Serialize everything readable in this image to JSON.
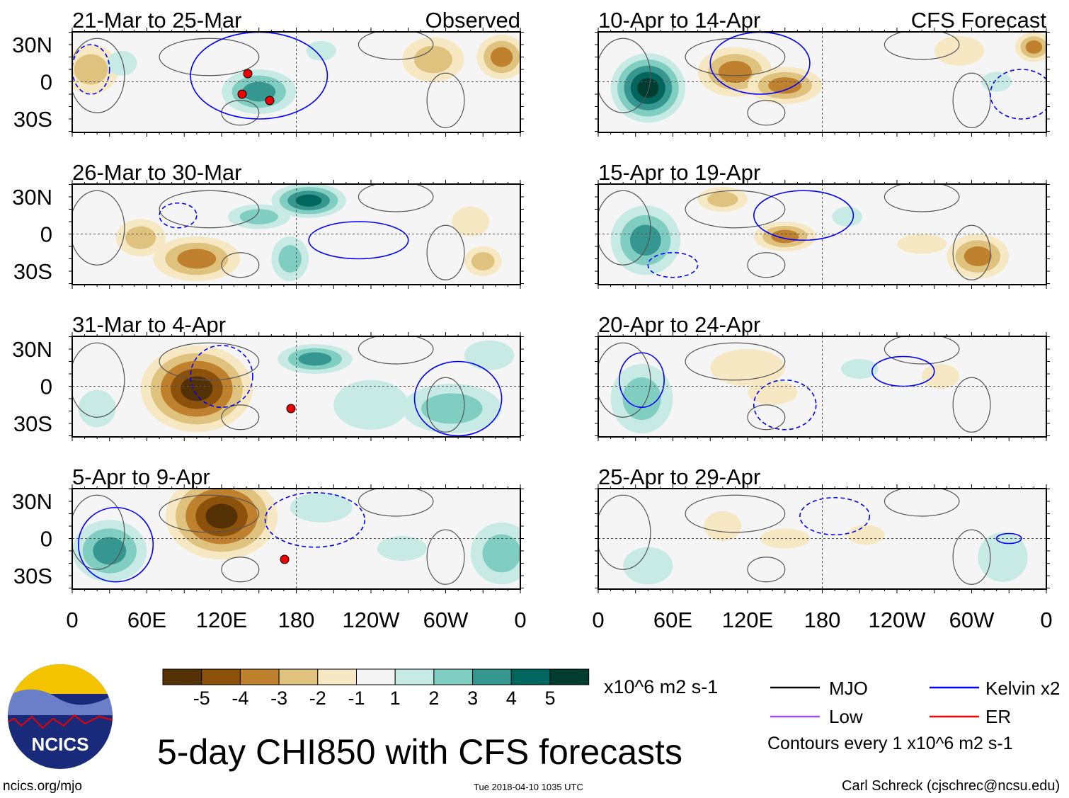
{
  "chart_data": {
    "type": "heatmap",
    "title": "5-day CHI850 with CFS forecasts",
    "variable": "CHI850 anomaly",
    "units": "x10^6 m2 s-1",
    "column_headers": {
      "left": "Observed",
      "right": "CFS Forecast"
    },
    "x_ticks": [
      "0",
      "60E",
      "120E",
      "180",
      "120W",
      "60W",
      "0"
    ],
    "y_ticks": [
      "30N",
      "0",
      "30S"
    ],
    "xlim_lon": [
      0,
      360
    ],
    "ylim_lat": [
      -40,
      40
    ],
    "panels": [
      {
        "title": "21-Mar to 25-Mar",
        "column": "left"
      },
      {
        "title": "26-Mar to 30-Mar",
        "column": "left"
      },
      {
        "title": "31-Mar to 4-Apr",
        "column": "left"
      },
      {
        "title": "5-Apr to 9-Apr",
        "column": "left"
      },
      {
        "title": "10-Apr to 14-Apr",
        "column": "right"
      },
      {
        "title": "15-Apr to 19-Apr",
        "column": "right"
      },
      {
        "title": "20-Apr to 24-Apr",
        "column": "right"
      },
      {
        "title": "25-Apr to 29-Apr",
        "column": "right"
      }
    ],
    "colorbar": {
      "labels": [
        "-5",
        "-4",
        "-3",
        "-2",
        "-1",
        "1",
        "2",
        "3",
        "4",
        "5"
      ],
      "colors": [
        "#543005",
        "#8c510a",
        "#bf812d",
        "#dfc27d",
        "#f6e8c3",
        "#f5f5f5",
        "#c7eae5",
        "#80cdc1",
        "#35978f",
        "#01665e",
        "#003c30"
      ]
    },
    "legend": [
      {
        "label": "MJO",
        "color": "#000000"
      },
      {
        "label": "Kelvin x2",
        "color": "#0000ff"
      },
      {
        "label": "Low",
        "color": "#9b4dff"
      },
      {
        "label": "ER",
        "color": "#ff0000"
      }
    ],
    "contour_note": "Contours every 1 x10^6 m2 s-1"
  },
  "footer": {
    "logo_text": "NCICS",
    "url": "ncics.org/mjo",
    "timestamp": "Tue 2018-04-10 1035 UTC",
    "credit": "Carl Schreck (cjschrec@ncsu.edu)"
  }
}
